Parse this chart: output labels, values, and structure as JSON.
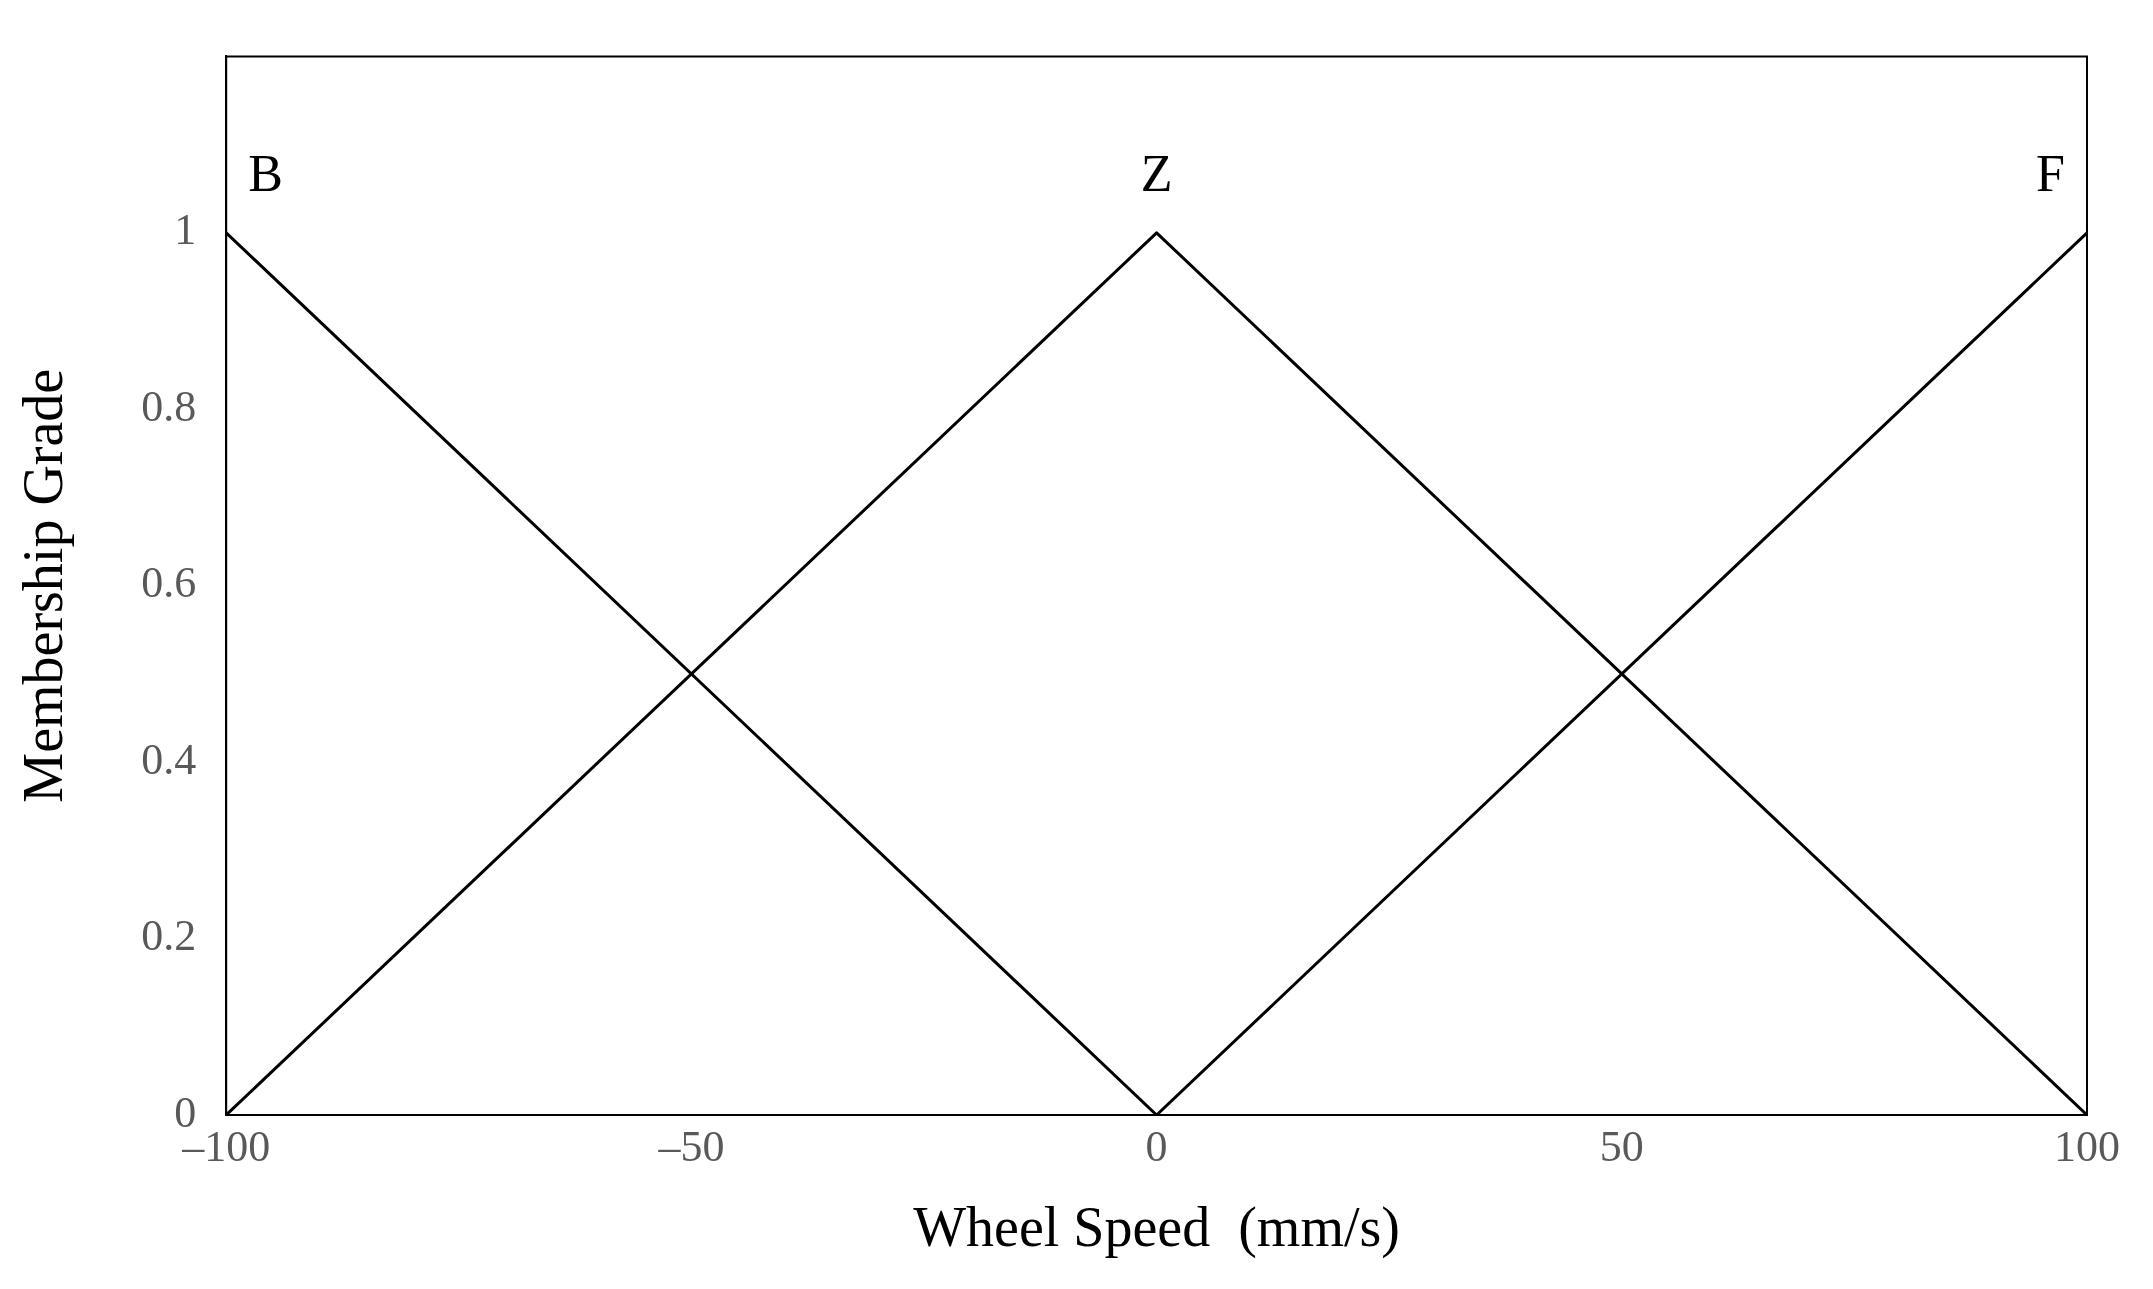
{
  "chart_data": {
    "type": "line",
    "xlabel": "Wheel Speed  (mm/s)",
    "ylabel": "Membership Grade",
    "series": [
      {
        "name": "B",
        "color": "#000000",
        "x": [
          -100,
          0
        ],
        "values": [
          1,
          0
        ]
      },
      {
        "name": "Z",
        "color": "#000000",
        "x": [
          -100,
          0,
          100
        ],
        "values": [
          0,
          1,
          0
        ]
      },
      {
        "name": "F",
        "color": "#000000",
        "x": [
          0,
          100
        ],
        "values": [
          0,
          1
        ]
      }
    ],
    "xlim": [
      -100,
      100
    ],
    "xticks": [
      {
        "value": -100,
        "label": "–100"
      },
      {
        "value": -50,
        "label": "–50"
      },
      0,
      50,
      100
    ],
    "ylim": [
      0,
      1.2
    ],
    "yticks": [
      0,
      0.2,
      0.4,
      0.6,
      0.8,
      1
    ],
    "grid": false,
    "legend": false,
    "marker": "none",
    "line_style": "solid"
  }
}
